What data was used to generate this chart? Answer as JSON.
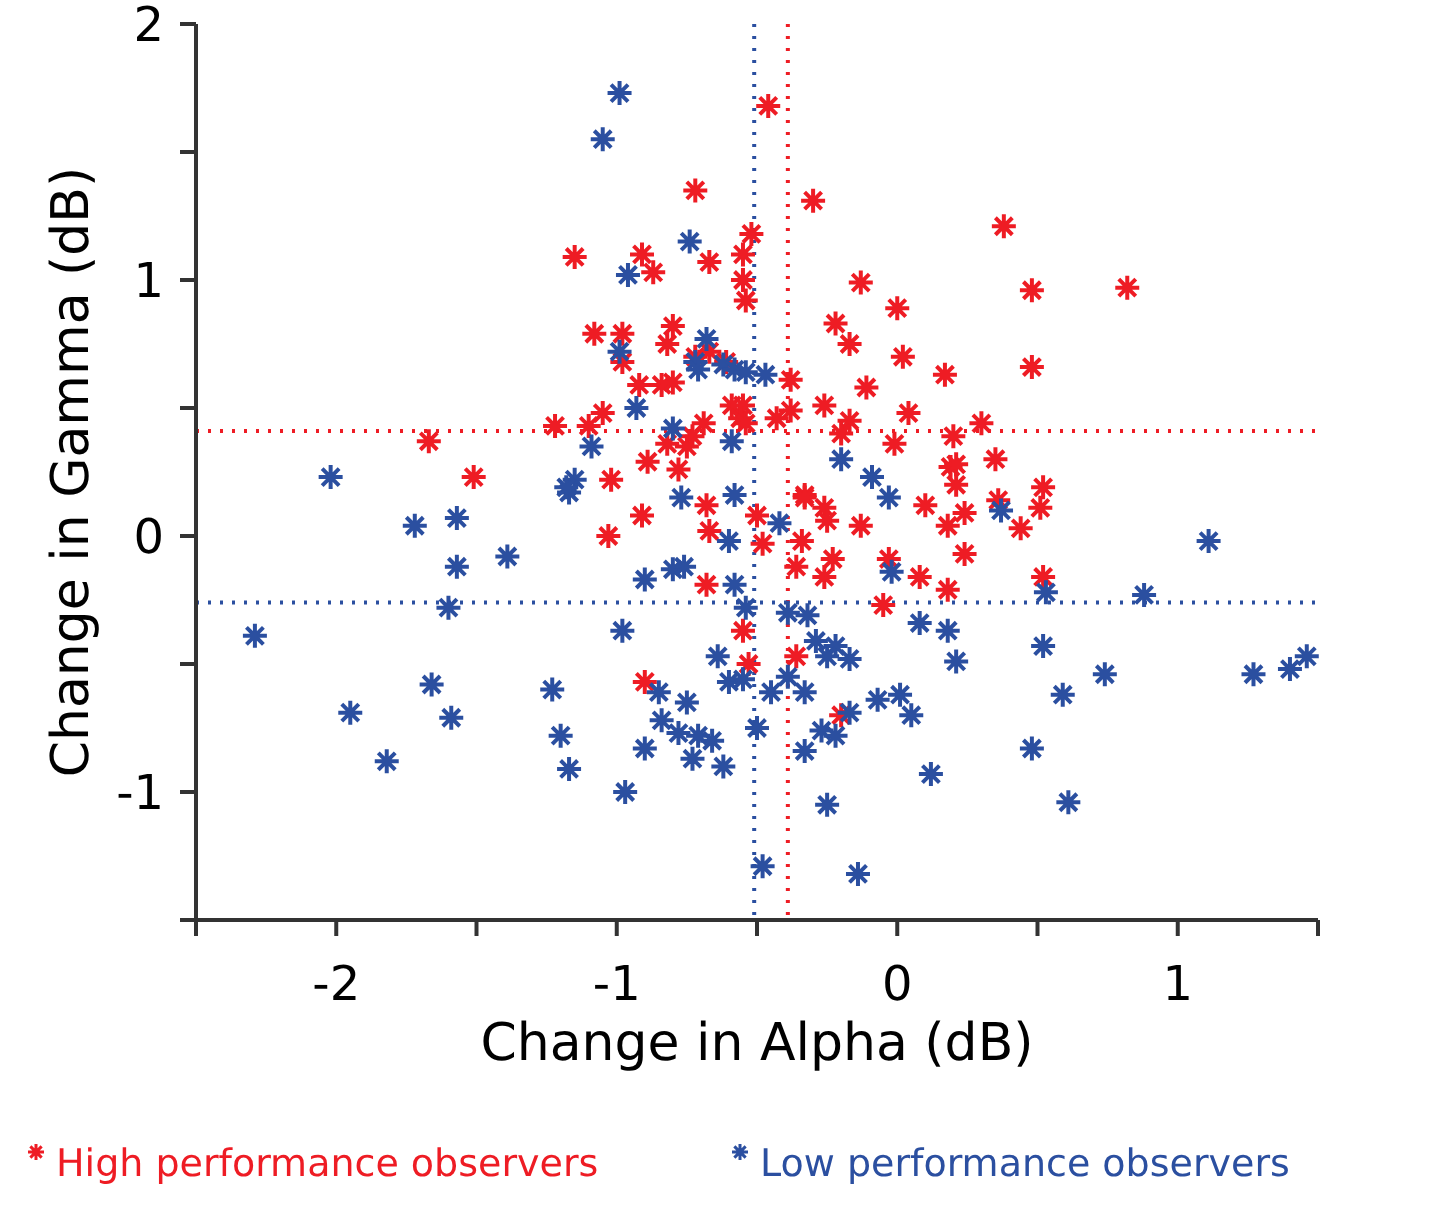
{
  "chart_data": {
    "type": "scatter",
    "xlabel": "Change in Alpha (dB)",
    "ylabel": "Change in Gamma (dB)",
    "xlim": [
      -2.5,
      1.5
    ],
    "ylim": [
      -1.5,
      2
    ],
    "xticks": [
      {
        "value": -2.5,
        "label": null
      },
      -2,
      {
        "value": -1.5,
        "label": null
      },
      -1,
      {
        "value": -0.5,
        "label": null
      },
      0,
      {
        "value": 0.5,
        "label": null
      },
      1,
      {
        "value": 1.5,
        "label": null
      }
    ],
    "yticks": [
      {
        "value": -1.5,
        "label": null
      },
      -1,
      {
        "value": -0.5,
        "label": null
      },
      0,
      {
        "value": 0.5,
        "label": null
      },
      1,
      {
        "value": 1.5,
        "label": null
      },
      2
    ],
    "grid": false,
    "legend": "bottom",
    "marker": "cross",
    "ref_lines": [
      {
        "axis": "x",
        "value": -0.39,
        "color": "#ee1c24",
        "line_style": "dotted"
      },
      {
        "axis": "y",
        "value": 0.41,
        "color": "#ee1c24",
        "line_style": "dotted"
      },
      {
        "axis": "x",
        "value": -0.51,
        "color": "#2b4fa0",
        "line_style": "dotted"
      },
      {
        "axis": "y",
        "value": -0.26,
        "color": "#2b4fa0",
        "line_style": "dotted"
      }
    ],
    "series": [
      {
        "name": "High performance observers",
        "color": "#ee1c24",
        "x": [
          -0.46,
          -0.72,
          -1.15,
          -0.91,
          -0.87,
          -0.67,
          -0.52,
          -0.55,
          -0.55,
          -0.54,
          -1.08,
          -0.98,
          -0.98,
          -0.8,
          -0.82,
          -0.72,
          -0.67,
          -0.61,
          -0.92,
          -0.84,
          -0.8,
          -0.59,
          -0.55,
          -0.56,
          -0.54,
          -0.43,
          -1.05,
          -1.1,
          -1.22,
          -1.67,
          -0.69,
          -0.73,
          -0.82,
          -0.75,
          -0.89,
          -0.78,
          -1.51,
          -1.02,
          -0.91,
          -1.03,
          -0.68,
          -0.67,
          -0.5,
          -0.48,
          -0.68,
          -0.55,
          -0.53,
          -0.9,
          -0.3,
          0.38,
          -0.13,
          0.48,
          0.82,
          0.0,
          -0.22,
          -0.17,
          0.02,
          0.17,
          0.48,
          -0.38,
          -0.11,
          -0.26,
          -0.38,
          0.04,
          -0.17,
          -0.2,
          0.3,
          0.2,
          -0.01,
          0.35,
          0.19,
          0.21,
          0.21,
          -0.33,
          -0.33,
          -0.26,
          -0.25,
          0.1,
          -0.13,
          0.18,
          0.24,
          0.36,
          0.52,
          0.51,
          0.44,
          -0.34,
          -0.36,
          -0.23,
          -0.26,
          -0.03,
          0.24,
          0.08,
          0.18,
          0.52,
          -0.05,
          -0.36,
          -0.2
        ],
        "values": [
          1.68,
          1.35,
          1.09,
          1.1,
          1.03,
          1.07,
          1.18,
          1.1,
          1.0,
          0.92,
          0.79,
          0.79,
          0.68,
          0.82,
          0.75,
          0.7,
          0.72,
          0.68,
          0.59,
          0.59,
          0.6,
          0.51,
          0.51,
          0.46,
          0.44,
          0.46,
          0.48,
          0.43,
          0.43,
          0.37,
          0.44,
          0.39,
          0.36,
          0.35,
          0.29,
          0.26,
          0.23,
          0.22,
          0.08,
          0.0,
          0.12,
          0.02,
          0.08,
          -0.03,
          -0.19,
          -0.37,
          -0.5,
          -0.57,
          1.31,
          1.21,
          0.99,
          0.96,
          0.97,
          0.89,
          0.83,
          0.75,
          0.7,
          0.63,
          0.66,
          0.61,
          0.58,
          0.51,
          0.49,
          0.48,
          0.45,
          0.4,
          0.44,
          0.39,
          0.36,
          0.3,
          0.27,
          0.28,
          0.2,
          0.16,
          0.15,
          0.11,
          0.06,
          0.12,
          0.04,
          0.04,
          0.09,
          0.14,
          0.19,
          0.11,
          0.03,
          -0.02,
          -0.12,
          -0.09,
          -0.16,
          -0.09,
          -0.07,
          -0.16,
          -0.21,
          -0.16,
          -0.27,
          -0.47,
          -0.7
        ]
      },
      {
        "name": "Low performance observers",
        "color": "#2b4fa0",
        "x": [
          -0.99,
          -1.05,
          -0.74,
          -0.96,
          -0.68,
          -0.99,
          -0.72,
          -0.71,
          -0.62,
          -0.58,
          -0.54,
          -0.47,
          -0.93,
          -0.8,
          -1.09,
          -0.59,
          -2.02,
          -1.15,
          -0.2,
          -0.09,
          -1.17,
          -1.18,
          -1.72,
          -1.57,
          -1.57,
          -1.39,
          -0.77,
          -0.58,
          -0.6,
          -0.42,
          -0.9,
          -0.8,
          -0.76,
          -0.58,
          -0.54,
          -1.6,
          -2.29,
          -0.98,
          -0.64,
          -0.6,
          -0.55,
          -0.45,
          -0.85,
          -0.75,
          -1.66,
          -1.23,
          -1.95,
          -1.59,
          -0.84,
          -1.2,
          -0.78,
          -0.71,
          -0.66,
          -0.5,
          -0.9,
          -0.73,
          -0.62,
          -1.17,
          -1.82,
          -0.97,
          -0.48,
          -0.03,
          0.37,
          -0.02,
          0.53,
          0.88,
          1.11,
          -0.39,
          -0.32,
          0.08,
          0.18,
          -0.29,
          -0.22,
          -0.25,
          -0.17,
          0.21,
          0.52,
          -0.39,
          -0.33,
          -0.17,
          -0.07,
          0.01,
          0.05,
          0.74,
          0.59,
          1.27,
          1.4,
          1.46,
          -0.27,
          -0.22,
          -0.33,
          0.48,
          0.12,
          -0.25,
          0.61,
          -0.14
        ],
        "values": [
          1.73,
          1.55,
          1.15,
          1.02,
          0.77,
          0.72,
          0.68,
          0.65,
          0.67,
          0.65,
          0.64,
          0.63,
          0.5,
          0.42,
          0.35,
          0.37,
          0.23,
          0.22,
          0.3,
          0.23,
          0.17,
          0.19,
          0.04,
          0.07,
          -0.12,
          -0.08,
          0.15,
          0.16,
          -0.02,
          0.05,
          -0.17,
          -0.13,
          -0.12,
          -0.19,
          -0.28,
          -0.28,
          -0.39,
          -0.37,
          -0.47,
          -0.57,
          -0.56,
          -0.61,
          -0.61,
          -0.65,
          -0.58,
          -0.6,
          -0.69,
          -0.71,
          -0.72,
          -0.78,
          -0.77,
          -0.78,
          -0.8,
          -0.75,
          -0.83,
          -0.87,
          -0.9,
          -0.91,
          -0.88,
          -1.0,
          -1.29,
          0.15,
          0.1,
          -0.14,
          -0.22,
          -0.23,
          -0.02,
          -0.3,
          -0.31,
          -0.34,
          -0.37,
          -0.41,
          -0.43,
          -0.47,
          -0.48,
          -0.49,
          -0.43,
          -0.55,
          -0.61,
          -0.69,
          -0.64,
          -0.62,
          -0.7,
          -0.54,
          -0.62,
          -0.54,
          -0.52,
          -0.47,
          -0.76,
          -0.78,
          -0.84,
          -0.83,
          -0.93,
          -1.05,
          -1.04,
          -1.32
        ]
      }
    ]
  }
}
